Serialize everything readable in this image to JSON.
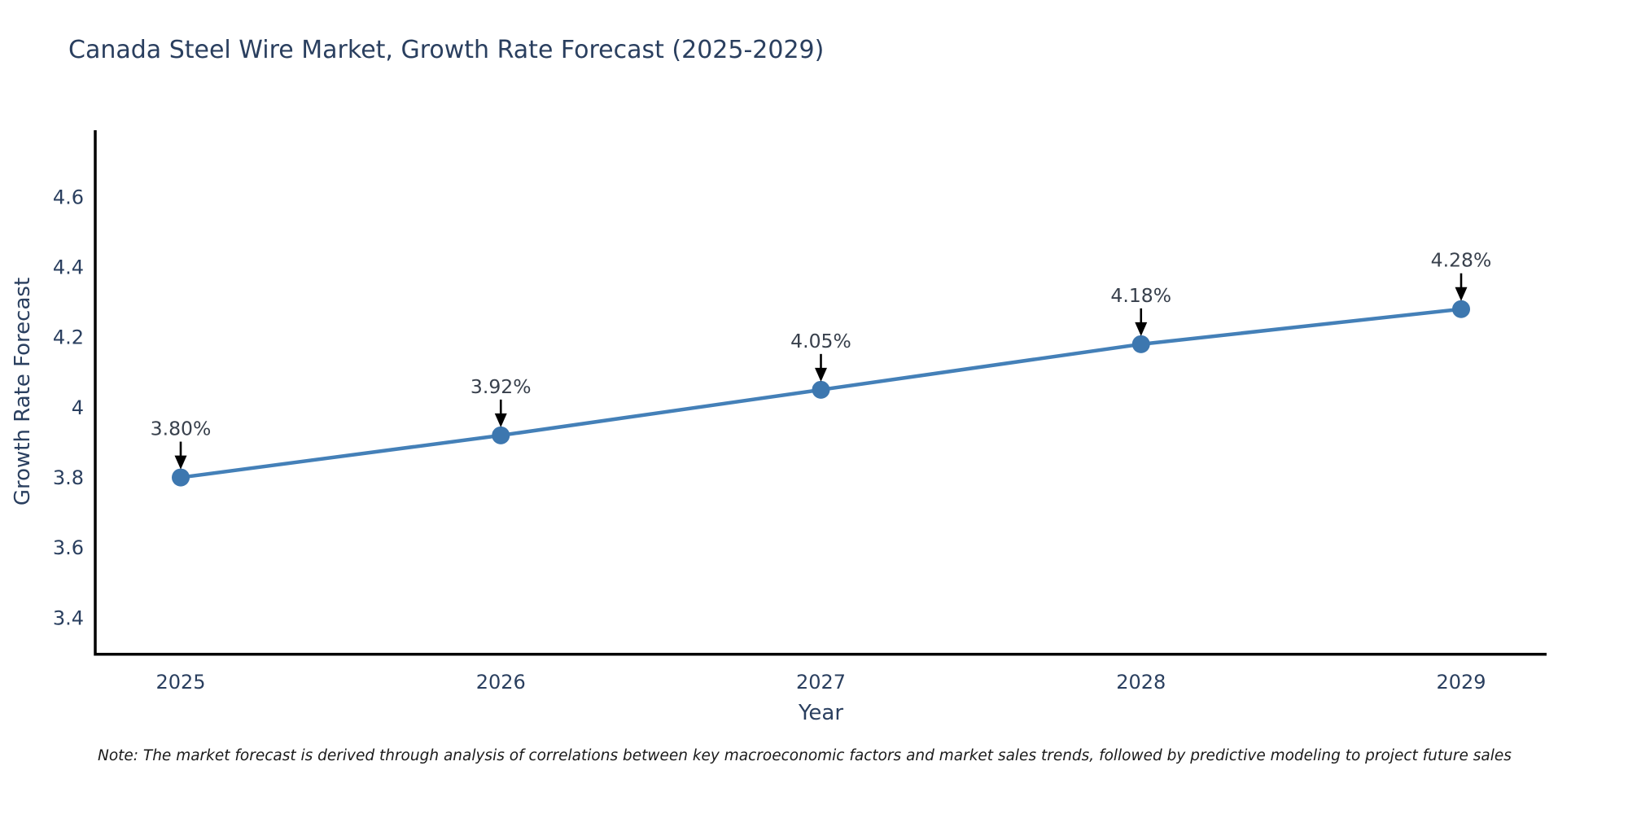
{
  "chart_data": {
    "type": "line",
    "title": "Canada Steel Wire Market, Growth Rate Forecast (2025-2029)",
    "xlabel": "Year",
    "ylabel": "Growth Rate Forecast",
    "categories": [
      "2025",
      "2026",
      "2027",
      "2028",
      "2029"
    ],
    "series": [
      {
        "name": "Growth Rate Forecast",
        "values": [
          3.8,
          3.92,
          4.05,
          4.18,
          4.28
        ]
      }
    ],
    "point_labels": [
      "3.80%",
      "3.92%",
      "4.05%",
      "4.18%",
      "4.28%"
    ],
    "ytick_labels": [
      "3.4",
      "3.6",
      "3.8",
      "4",
      "4.2",
      "4.4",
      "4.6"
    ],
    "ytick_values": [
      3.4,
      3.6,
      3.8,
      4.0,
      4.2,
      4.4,
      4.6
    ],
    "ylim": [
      3.3,
      4.79
    ],
    "grid": false,
    "legend_position": "none",
    "colors": {
      "line": "#4480b8",
      "marker": "#3d77af",
      "axis_line": "#000000",
      "tick_text": "#2a3f5f",
      "axis_title_text": "#2a3f5f",
      "title_text": "#2a3f5f",
      "annotation_text": "#38404c",
      "annotation_arrow": "#000000"
    }
  },
  "note": {
    "text": "Note: The market forecast is derived through analysis of correlations between key macroeconomic factors and market sales trends, followed by predictive modeling to project future sales"
  }
}
